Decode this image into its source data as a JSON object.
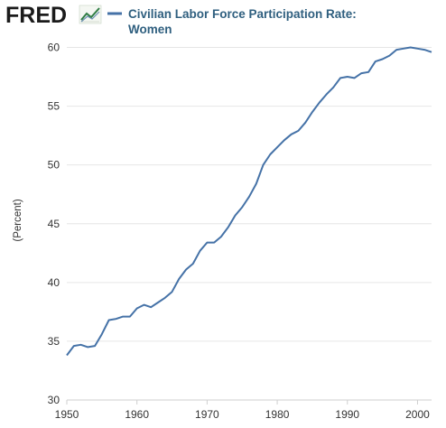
{
  "brand": "FRED",
  "colors": {
    "series": "#4572a7",
    "legend_dash": "#4572a7",
    "brand_text": "#1b1b1b",
    "title_text": "#2f5f7f",
    "grid": "#e6e6e6"
  },
  "icons": {
    "logo_mark": "fred-chart-logo-icon"
  },
  "chart_data": {
    "type": "line",
    "title_line1": "Civilian Labor Force Participation Rate:",
    "title_line2": "Women",
    "ylabel": "(Percent)",
    "xlim": [
      1950,
      2002
    ],
    "ylim": [
      30,
      60.5
    ],
    "x_ticks": [
      1950,
      1960,
      1970,
      1980,
      1990,
      2000
    ],
    "y_ticks": [
      30,
      35,
      40,
      45,
      50,
      55,
      60
    ],
    "grid": "horizontal",
    "series": [
      {
        "name": "Civilian Labor Force Participation Rate: Women",
        "x": [
          1950,
          1951,
          1952,
          1953,
          1954,
          1955,
          1956,
          1957,
          1958,
          1959,
          1960,
          1961,
          1962,
          1963,
          1964,
          1965,
          1966,
          1967,
          1968,
          1969,
          1970,
          1971,
          1972,
          1973,
          1974,
          1975,
          1976,
          1977,
          1978,
          1979,
          1980,
          1981,
          1982,
          1983,
          1984,
          1985,
          1986,
          1987,
          1988,
          1989,
          1990,
          1991,
          1992,
          1993,
          1994,
          1995,
          1996,
          1997,
          1998,
          1999,
          2000,
          2001,
          2002
        ],
        "values": [
          33.8,
          34.6,
          34.7,
          34.5,
          34.6,
          35.6,
          36.8,
          36.9,
          37.1,
          37.1,
          37.8,
          38.1,
          37.9,
          38.3,
          38.7,
          39.2,
          40.3,
          41.1,
          41.6,
          42.7,
          43.4,
          43.4,
          43.9,
          44.7,
          45.7,
          46.4,
          47.3,
          48.4,
          50.0,
          50.9,
          51.5,
          52.1,
          52.6,
          52.9,
          53.6,
          54.5,
          55.3,
          56.0,
          56.6,
          57.4,
          57.5,
          57.4,
          57.8,
          57.9,
          58.8,
          59.0,
          59.3,
          59.8,
          59.9,
          60.0,
          59.9,
          59.8,
          59.6
        ]
      }
    ]
  }
}
